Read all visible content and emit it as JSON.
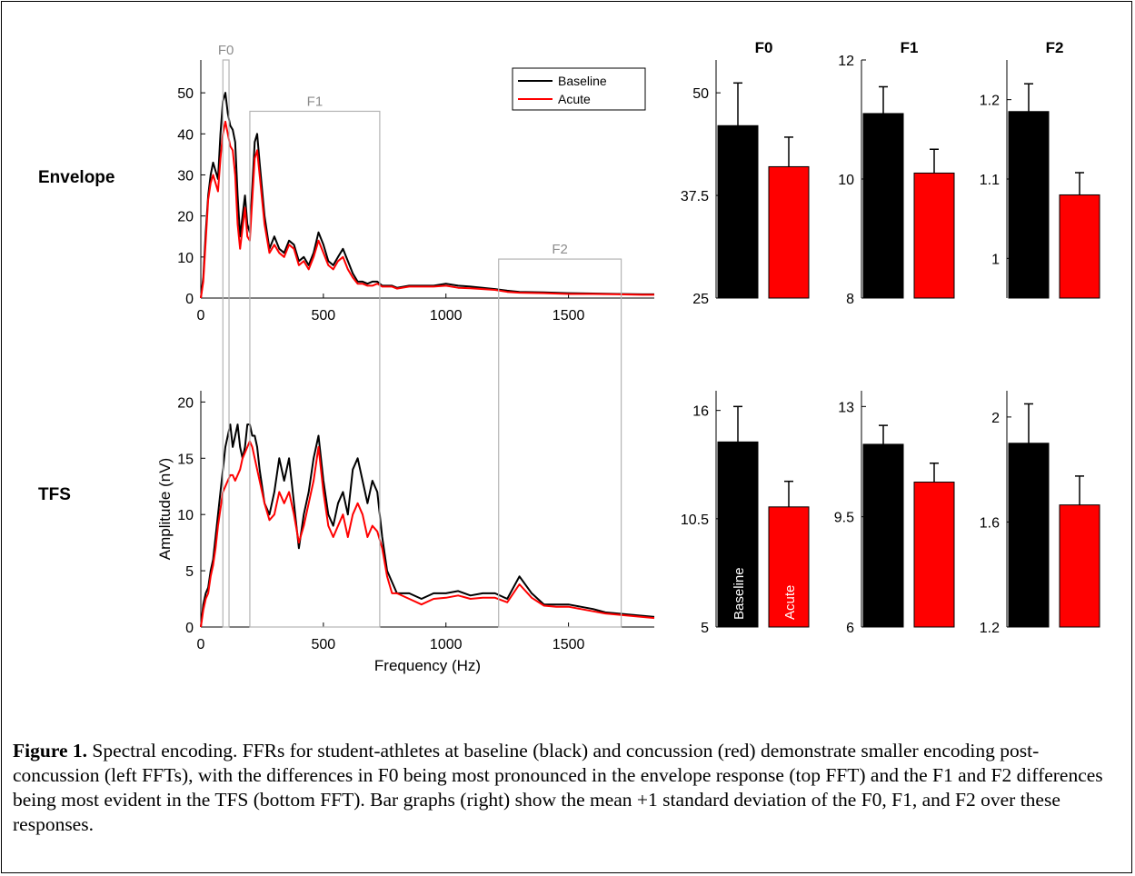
{
  "figure": {
    "row_labels": [
      "Envelope",
      "TFS"
    ],
    "caption": {
      "label": "Figure 1.",
      "text": "Spectral encoding. FFRs for student-athletes at baseline (black) and concussion (red) demonstrate smaller encoding post-concussion (left FFTs), with the differences in F0 being most pronounced in the envelope response (top FFT) and the F1 and F2 differences being most evident in the TFS (bottom FFT). Bar graphs (right) show the mean +1 standard deviation of the F0, F1, and F2 over these responses."
    }
  },
  "colors": {
    "baseline": "#000000",
    "acute": "#ff0000",
    "region_box": "#b4b4b4"
  },
  "chart_data": [
    {
      "type": "line",
      "row": "Envelope",
      "xlabel": "",
      "ylabel": "",
      "xlim": [
        0,
        1850
      ],
      "ylim": [
        0,
        58
      ],
      "xticks": [
        0,
        500,
        1000,
        1500
      ],
      "yticks": [
        0,
        10,
        20,
        30,
        40,
        50
      ],
      "legend": {
        "placement": "top-right",
        "entries": [
          "Baseline",
          "Acute"
        ]
      },
      "regions": [
        {
          "label": "F0",
          "x": [
            90,
            115
          ],
          "ymax": 58
        },
        {
          "label": "F1",
          "x": [
            200,
            730
          ],
          "ymax": 45.5
        },
        {
          "label": "F2",
          "x": [
            1215,
            1715
          ],
          "ymax": 9.5
        }
      ],
      "series": [
        {
          "name": "Baseline",
          "x": [
            0,
            10,
            20,
            30,
            40,
            50,
            60,
            70,
            80,
            90,
            100,
            110,
            120,
            130,
            140,
            150,
            160,
            170,
            180,
            190,
            200,
            210,
            220,
            230,
            240,
            260,
            280,
            300,
            320,
            340,
            360,
            380,
            400,
            420,
            440,
            460,
            480,
            500,
            520,
            540,
            560,
            580,
            600,
            620,
            640,
            660,
            680,
            700,
            720,
            740,
            760,
            780,
            800,
            850,
            900,
            950,
            1000,
            1050,
            1100,
            1150,
            1200,
            1250,
            1300,
            1400,
            1500,
            1600,
            1700,
            1800,
            1850
          ],
          "y": [
            0,
            5,
            16,
            25,
            30,
            33,
            31,
            29,
            40,
            48,
            50,
            45,
            42,
            41,
            38,
            25,
            15,
            20,
            25,
            18,
            16,
            27,
            38,
            40,
            33,
            20,
            12,
            15,
            12,
            11,
            14,
            13,
            9,
            10,
            8,
            11,
            16,
            13,
            9,
            8,
            10,
            12,
            9,
            6,
            4,
            4,
            3.5,
            4,
            4,
            3,
            3,
            3,
            2.5,
            3,
            3,
            3,
            3.5,
            3,
            2.8,
            2.5,
            2.2,
            1.8,
            1.5,
            1.4,
            1.2,
            1.1,
            1,
            0.9,
            0.9
          ]
        },
        {
          "name": "Acute",
          "x": [
            0,
            10,
            20,
            30,
            40,
            50,
            60,
            70,
            80,
            90,
            100,
            110,
            120,
            130,
            140,
            150,
            160,
            170,
            180,
            190,
            200,
            210,
            220,
            230,
            240,
            260,
            280,
            300,
            320,
            340,
            360,
            380,
            400,
            420,
            440,
            460,
            480,
            500,
            520,
            540,
            560,
            580,
            600,
            620,
            640,
            660,
            680,
            700,
            720,
            740,
            760,
            780,
            800,
            850,
            900,
            950,
            1000,
            1050,
            1100,
            1150,
            1200,
            1250,
            1300,
            1400,
            1500,
            1600,
            1700,
            1800,
            1850
          ],
          "y": [
            0,
            4,
            14,
            24,
            28,
            30,
            28,
            26,
            34,
            40,
            43,
            40,
            37,
            36,
            30,
            18,
            12,
            17,
            22,
            15,
            14,
            24,
            34,
            36,
            30,
            18,
            11,
            13,
            11,
            10,
            13,
            12,
            8,
            9,
            7,
            10,
            14,
            11,
            8,
            7,
            9,
            10,
            7,
            5,
            3.5,
            3.5,
            3,
            3,
            3.5,
            2.8,
            2.8,
            2.8,
            2.3,
            2.8,
            2.8,
            2.8,
            3,
            2.5,
            2.4,
            2.2,
            2,
            1.5,
            1.3,
            1.2,
            1,
            1,
            0.9,
            0.8,
            0.8
          ]
        }
      ]
    },
    {
      "type": "line",
      "row": "TFS",
      "xlabel": "Frequency (Hz)",
      "ylabel": "Amplitude (nV)",
      "xlim": [
        0,
        1850
      ],
      "ylim": [
        0,
        21
      ],
      "xticks": [
        0,
        500,
        1000,
        1500
      ],
      "yticks": [
        0,
        5,
        10,
        15,
        20
      ],
      "series": [
        {
          "name": "Baseline",
          "x": [
            0,
            10,
            20,
            30,
            40,
            50,
            60,
            70,
            80,
            90,
            100,
            110,
            120,
            130,
            140,
            150,
            160,
            170,
            180,
            190,
            200,
            210,
            220,
            230,
            240,
            260,
            280,
            300,
            320,
            340,
            360,
            380,
            400,
            420,
            440,
            460,
            480,
            500,
            520,
            540,
            560,
            580,
            600,
            620,
            640,
            660,
            680,
            700,
            720,
            740,
            760,
            780,
            800,
            850,
            900,
            950,
            1000,
            1050,
            1100,
            1150,
            1200,
            1250,
            1300,
            1350,
            1400,
            1450,
            1500,
            1550,
            1600,
            1650,
            1700,
            1750,
            1800,
            1850
          ],
          "y": [
            0,
            2,
            3,
            3.5,
            5,
            6,
            8,
            10,
            12,
            14,
            16,
            17,
            18,
            16,
            17,
            18,
            16,
            15,
            16,
            18,
            18,
            17,
            17,
            16,
            14,
            11,
            10,
            12,
            15,
            13,
            15,
            11,
            7,
            10,
            12,
            15,
            17,
            13,
            10,
            9,
            11,
            12,
            10,
            14,
            15,
            13,
            11,
            13,
            12,
            8,
            5,
            4,
            3,
            3,
            2.5,
            3,
            3,
            3.2,
            2.8,
            3,
            3,
            2.5,
            4.5,
            3,
            2,
            2,
            2,
            1.8,
            1.6,
            1.3,
            1.2,
            1.1,
            1,
            0.9
          ]
        },
        {
          "name": "Acute",
          "x": [
            0,
            10,
            20,
            30,
            40,
            50,
            60,
            70,
            80,
            90,
            100,
            110,
            120,
            130,
            140,
            150,
            160,
            170,
            180,
            190,
            200,
            210,
            220,
            230,
            240,
            260,
            280,
            300,
            320,
            340,
            360,
            380,
            400,
            420,
            440,
            460,
            480,
            500,
            520,
            540,
            560,
            580,
            600,
            620,
            640,
            660,
            680,
            700,
            720,
            740,
            760,
            780,
            800,
            850,
            900,
            950,
            1000,
            1050,
            1100,
            1150,
            1200,
            1250,
            1300,
            1350,
            1400,
            1450,
            1500,
            1550,
            1600,
            1650,
            1700,
            1750,
            1800,
            1850
          ],
          "y": [
            0,
            1.5,
            2.5,
            3,
            4.5,
            5.5,
            7,
            9,
            10.5,
            12,
            12.5,
            13,
            13.5,
            13.5,
            13,
            13.5,
            14,
            15,
            15.5,
            16,
            16.5,
            16,
            15,
            14,
            13,
            11,
            9.5,
            10,
            12,
            11,
            12,
            10,
            7.5,
            9,
            11,
            13,
            16,
            12,
            9,
            8,
            9,
            10,
            8,
            10,
            11,
            10,
            8,
            9,
            8.5,
            7,
            4.5,
            3,
            3,
            2.5,
            2,
            2.5,
            2.6,
            2.8,
            2.5,
            2.6,
            2.6,
            2.2,
            3.8,
            2.6,
            1.9,
            1.8,
            1.8,
            1.6,
            1.4,
            1.2,
            1.1,
            1,
            0.9,
            0.8
          ]
        }
      ]
    },
    {
      "type": "bar",
      "row": "Envelope",
      "title": "F0",
      "categories": [
        "Baseline",
        "Acute"
      ],
      "values": [
        46,
        41
      ],
      "errors": [
        5.2,
        3.6
      ],
      "ylim": [
        25,
        54
      ],
      "yticks": [
        25,
        37.5,
        50
      ]
    },
    {
      "type": "bar",
      "row": "Envelope",
      "title": "F1",
      "categories": [
        "Baseline",
        "Acute"
      ],
      "values": [
        11.1,
        10.1
      ],
      "errors": [
        0.45,
        0.4
      ],
      "ylim": [
        8,
        12
      ],
      "yticks": [
        8,
        10,
        12
      ]
    },
    {
      "type": "bar",
      "row": "Envelope",
      "title": "F2",
      "categories": [
        "Baseline",
        "Acute"
      ],
      "values": [
        1.185,
        1.08
      ],
      "errors": [
        0.035,
        0.028
      ],
      "ylim": [
        0.95,
        1.25
      ],
      "yticks": [
        1,
        1.1,
        1.2
      ]
    },
    {
      "type": "bar",
      "row": "TFS",
      "title": "",
      "categories": [
        "Baseline",
        "Acute"
      ],
      "values": [
        14.4,
        11.1
      ],
      "errors": [
        1.8,
        1.3
      ],
      "ylim": [
        5,
        17
      ],
      "yticks": [
        5,
        10.5,
        16
      ],
      "bar_labels": [
        "Baseline",
        "Acute"
      ]
    },
    {
      "type": "bar",
      "row": "TFS",
      "title": "",
      "categories": [
        "Baseline",
        "Acute"
      ],
      "values": [
        11.8,
        10.6
      ],
      "errors": [
        0.6,
        0.6
      ],
      "ylim": [
        6,
        13.5
      ],
      "yticks": [
        6,
        9.5,
        13
      ]
    },
    {
      "type": "bar",
      "row": "TFS",
      "title": "",
      "categories": [
        "Baseline",
        "Acute"
      ],
      "values": [
        1.9,
        1.665
      ],
      "errors": [
        0.15,
        0.11
      ],
      "ylim": [
        1.2,
        2.1
      ],
      "yticks": [
        1.2,
        1.6,
        2
      ]
    }
  ]
}
